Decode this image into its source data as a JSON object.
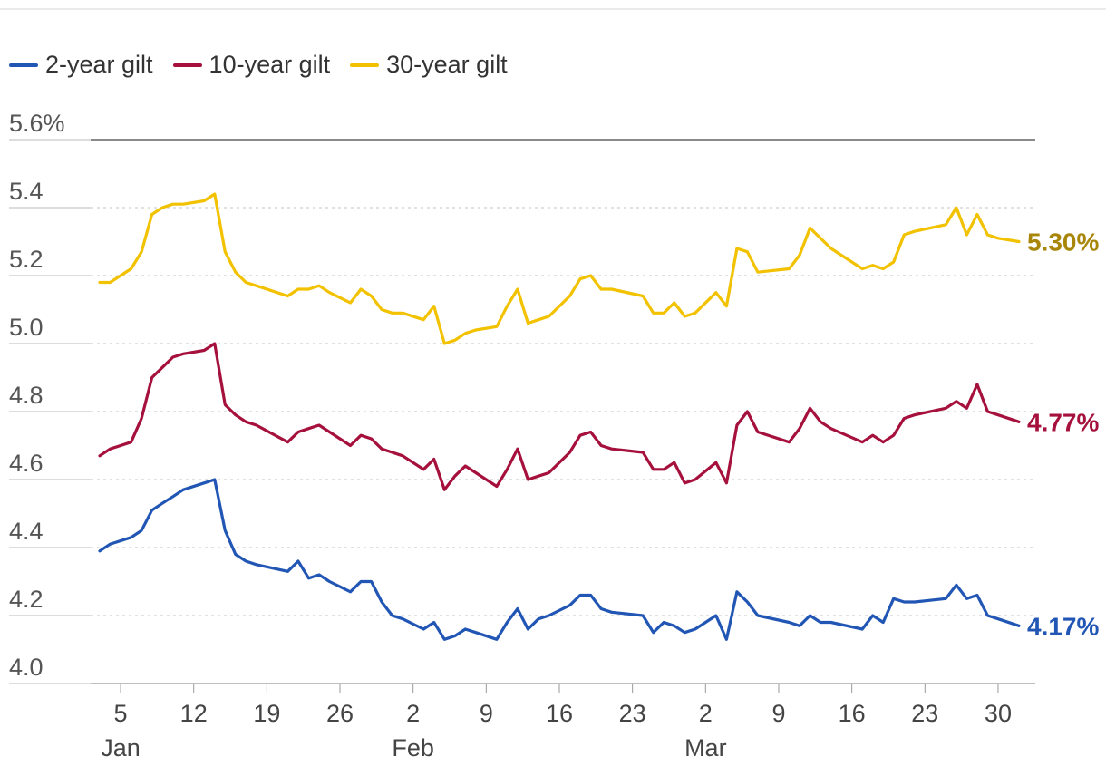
{
  "chart_data": {
    "type": "line",
    "title": "",
    "xlabel": "",
    "ylabel": "",
    "ylim": [
      4.0,
      5.6
    ],
    "y_ticks": [
      "4.0",
      "4.2",
      "4.4",
      "4.6",
      "4.8",
      "5.0",
      "5.2",
      "5.4",
      "5.6%"
    ],
    "x_range_days": [
      3,
      91
    ],
    "x_ticks": [
      {
        "day": 5,
        "label": "5"
      },
      {
        "day": 12,
        "label": "12"
      },
      {
        "day": 19,
        "label": "19"
      },
      {
        "day": 26,
        "label": "26"
      },
      {
        "day": 33,
        "label": "2"
      },
      {
        "day": 40,
        "label": "9"
      },
      {
        "day": 47,
        "label": "16"
      },
      {
        "day": 54,
        "label": "23"
      },
      {
        "day": 61,
        "label": "2"
      },
      {
        "day": 68,
        "label": "9"
      },
      {
        "day": 75,
        "label": "16"
      },
      {
        "day": 82,
        "label": "23"
      },
      {
        "day": 89,
        "label": "30"
      }
    ],
    "month_labels": [
      {
        "day": 5,
        "label": "Jan"
      },
      {
        "day": 33,
        "label": "Feb"
      },
      {
        "day": 61,
        "label": "Mar"
      }
    ],
    "x": [
      3,
      4,
      6,
      7,
      8,
      9,
      10,
      11,
      13,
      14,
      15,
      16,
      17,
      18,
      21,
      22,
      23,
      24,
      25,
      27,
      28,
      29,
      30,
      31,
      32,
      34,
      35,
      36,
      37,
      38,
      39,
      41,
      42,
      43,
      44,
      45,
      46,
      48,
      49,
      50,
      51,
      52,
      55,
      56,
      57,
      58,
      59,
      60,
      62,
      63,
      64,
      65,
      66,
      69,
      70,
      71,
      72,
      73,
      76,
      77,
      78,
      79,
      80,
      81,
      84,
      85,
      86,
      87,
      88,
      89,
      91
    ],
    "series": [
      {
        "name": "2-year gilt",
        "color": "#2156b5",
        "end_label": "4.17%",
        "values": [
          4.39,
          4.41,
          4.43,
          4.45,
          4.51,
          4.53,
          4.55,
          4.57,
          4.59,
          4.6,
          4.45,
          4.38,
          4.36,
          4.35,
          4.33,
          4.36,
          4.31,
          4.32,
          4.3,
          4.27,
          4.3,
          4.3,
          4.24,
          4.2,
          4.19,
          4.16,
          4.18,
          4.13,
          4.14,
          4.16,
          4.15,
          4.13,
          4.18,
          4.22,
          4.16,
          4.19,
          4.2,
          4.23,
          4.26,
          4.26,
          4.22,
          4.21,
          4.2,
          4.15,
          4.18,
          4.17,
          4.15,
          4.16,
          4.2,
          4.13,
          4.27,
          4.24,
          4.2,
          4.18,
          4.17,
          4.2,
          4.18,
          4.18,
          4.16,
          4.2,
          4.18,
          4.25,
          4.24,
          4.24,
          4.25,
          4.29,
          4.25,
          4.26,
          4.2,
          4.19,
          4.17
        ]
      },
      {
        "name": "10-year gilt",
        "color": "#a5113c",
        "end_label": "4.77%",
        "values": [
          4.67,
          4.69,
          4.71,
          4.78,
          4.9,
          4.93,
          4.96,
          4.97,
          4.98,
          5.0,
          4.82,
          4.79,
          4.77,
          4.76,
          4.71,
          4.74,
          4.75,
          4.76,
          4.74,
          4.7,
          4.73,
          4.72,
          4.69,
          4.68,
          4.67,
          4.63,
          4.66,
          4.57,
          4.61,
          4.64,
          4.62,
          4.58,
          4.63,
          4.69,
          4.6,
          4.61,
          4.62,
          4.68,
          4.73,
          4.74,
          4.7,
          4.69,
          4.68,
          4.63,
          4.63,
          4.65,
          4.59,
          4.6,
          4.65,
          4.59,
          4.76,
          4.8,
          4.74,
          4.71,
          4.75,
          4.81,
          4.77,
          4.75,
          4.71,
          4.73,
          4.71,
          4.73,
          4.78,
          4.79,
          4.81,
          4.83,
          4.81,
          4.88,
          4.8,
          4.79,
          4.77
        ]
      },
      {
        "name": "30-year gilt",
        "color": "#f2c200",
        "end_label": "5.30%",
        "values": [
          5.18,
          5.18,
          5.22,
          5.27,
          5.38,
          5.4,
          5.41,
          5.41,
          5.42,
          5.44,
          5.27,
          5.21,
          5.18,
          5.17,
          5.14,
          5.16,
          5.16,
          5.17,
          5.15,
          5.12,
          5.16,
          5.14,
          5.1,
          5.09,
          5.09,
          5.07,
          5.11,
          5.0,
          5.01,
          5.03,
          5.04,
          5.05,
          5.11,
          5.16,
          5.06,
          5.07,
          5.08,
          5.14,
          5.19,
          5.2,
          5.16,
          5.16,
          5.14,
          5.09,
          5.09,
          5.12,
          5.08,
          5.09,
          5.15,
          5.11,
          5.28,
          5.27,
          5.21,
          5.22,
          5.26,
          5.34,
          5.31,
          5.28,
          5.22,
          5.23,
          5.22,
          5.24,
          5.32,
          5.33,
          5.35,
          5.4,
          5.32,
          5.38,
          5.32,
          5.31,
          5.3
        ]
      }
    ]
  },
  "label_colors": {
    "2-year gilt": "#2156b5",
    "10-year gilt": "#a5113c",
    "30-year gilt": "#a8860a"
  }
}
